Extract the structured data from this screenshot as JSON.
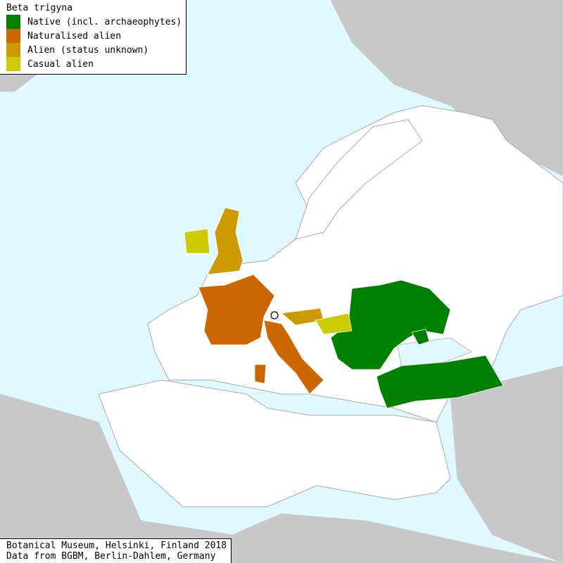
{
  "map": {
    "title": "Beta trigyna",
    "colors": {
      "sea": "#e0f8ff",
      "outside_land": "#c8c8c8",
      "land": "#ffffff",
      "border": "#aaaaaa"
    },
    "legend": [
      {
        "label": "Native (incl. archaeophytes)",
        "color": "#008000"
      },
      {
        "label": "Naturalised alien",
        "color": "#cc6600"
      },
      {
        "label": "Alien (status unknown)",
        "color": "#cc9900"
      },
      {
        "label": "Casual alien",
        "color": "#cccc00"
      }
    ],
    "regions": {
      "native": [
        "Ukraine",
        "Romania",
        "Moldova",
        "Bulgaria",
        "Crimea",
        "Turkey"
      ],
      "naturalised": [
        "France",
        "Italy",
        "Corsica",
        "Sardinia"
      ],
      "alien_unknown": [
        "Great Britain",
        "Austria"
      ],
      "casual": [
        "Ireland",
        "Hungary"
      ]
    },
    "marker": "open-circle"
  },
  "footer": {
    "line1": "Botanical Museum, Helsinki, Finland 2018",
    "line2": "Data from BGBM, Berlin-Dahlem, Germany"
  }
}
